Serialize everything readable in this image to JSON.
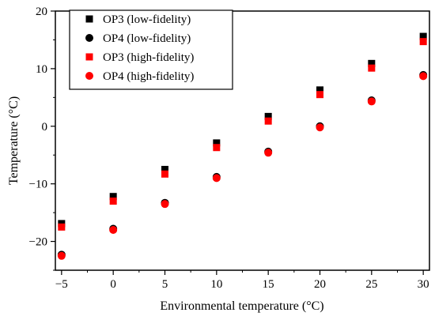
{
  "chart_data": {
    "type": "scatter",
    "xlabel": "Environmental temperature (°C)",
    "ylabel": "Temperature (°C)",
    "xlim": [
      -5.6,
      30.6
    ],
    "ylim": [
      -25,
      20
    ],
    "xticks": [
      -5,
      0,
      5,
      10,
      15,
      20,
      25,
      30
    ],
    "xtick_labels": [
      "−5",
      "0",
      "5",
      "10",
      "15",
      "20",
      "25",
      "30"
    ],
    "yticks": [
      -20,
      -10,
      0,
      10,
      20
    ],
    "ytick_labels": [
      "−20",
      "−10",
      "0",
      "10",
      "20"
    ],
    "grid": false,
    "legend_position": "top-left",
    "x": [
      -5,
      0,
      5,
      10,
      15,
      20,
      25,
      30
    ],
    "series": [
      {
        "name": "OP3 (low-fidelity)",
        "marker": "square",
        "color": "#000000",
        "values": [
          -16.9,
          -12.2,
          -7.5,
          -2.9,
          1.7,
          6.3,
          10.9,
          15.6
        ]
      },
      {
        "name": "OP4 (low-fidelity)",
        "marker": "circle",
        "color": "#000000",
        "values": [
          -22.3,
          -17.8,
          -13.3,
          -8.8,
          -4.4,
          0.0,
          4.5,
          8.9
        ]
      },
      {
        "name": "OP3 (high-fidelity)",
        "marker": "square",
        "color": "#ff0000",
        "values": [
          -17.5,
          -13.0,
          -8.3,
          -3.7,
          0.9,
          5.5,
          10.1,
          14.7
        ]
      },
      {
        "name": "OP4 (high-fidelity)",
        "marker": "circle",
        "color": "#ff0000",
        "values": [
          -22.5,
          -18.0,
          -13.5,
          -9.0,
          -4.6,
          -0.2,
          4.3,
          8.7
        ]
      }
    ]
  }
}
